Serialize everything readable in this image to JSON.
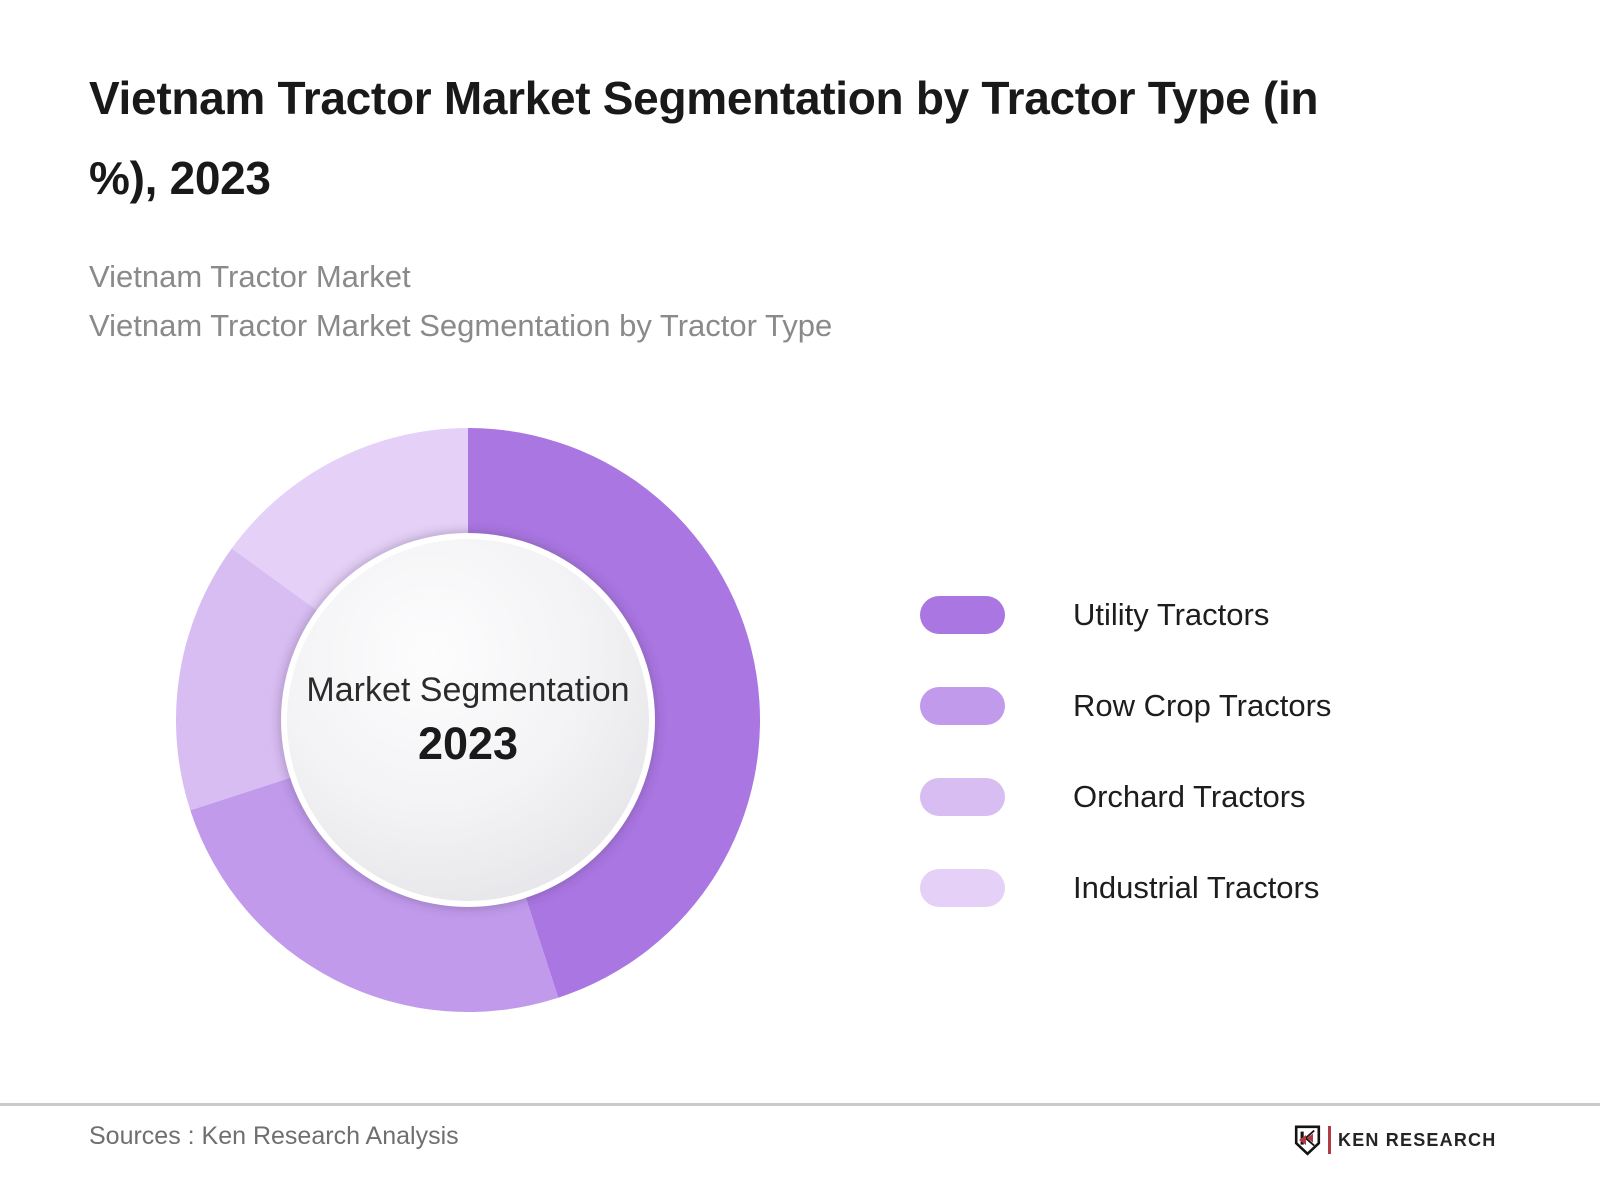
{
  "header": {
    "title_lines": [
      "Vietnam Tractor Market Segmentation by Tractor Type (in",
      "%), 2023"
    ],
    "subtitle_lines": [
      "Vietnam Tractor Market",
      "Vietnam Tractor Market Segmentation by Tractor Type"
    ]
  },
  "chart_data": {
    "type": "pie",
    "variant": "donut",
    "title": "Vietnam Tractor Market Segmentation by Tractor Type (in %), 2023",
    "unit": "%",
    "categories": [
      "Utility Tractors",
      "Row Crop Tractors",
      "Orchard Tractors",
      "Industrial Tractors"
    ],
    "values": [
      45,
      25,
      15,
      15
    ],
    "colors": [
      "#aa76e2",
      "#c19aec",
      "#d8bdf2",
      "#e5d1f7"
    ],
    "start_angle_deg": 0,
    "direction": "clockwise",
    "legend_position": "right",
    "center_label": {
      "line1": "Market Segmentation",
      "line2": "2023"
    }
  },
  "footer": {
    "sources": "Sources : Ken Research Analysis",
    "logo_text": "KEN RESEARCH",
    "logo_accent_color": "#b23a42"
  },
  "ui_colors": {
    "divider": "#cacaca",
    "center_circle_edge": "#e4e4e8",
    "brand_red": "#b23a42"
  }
}
